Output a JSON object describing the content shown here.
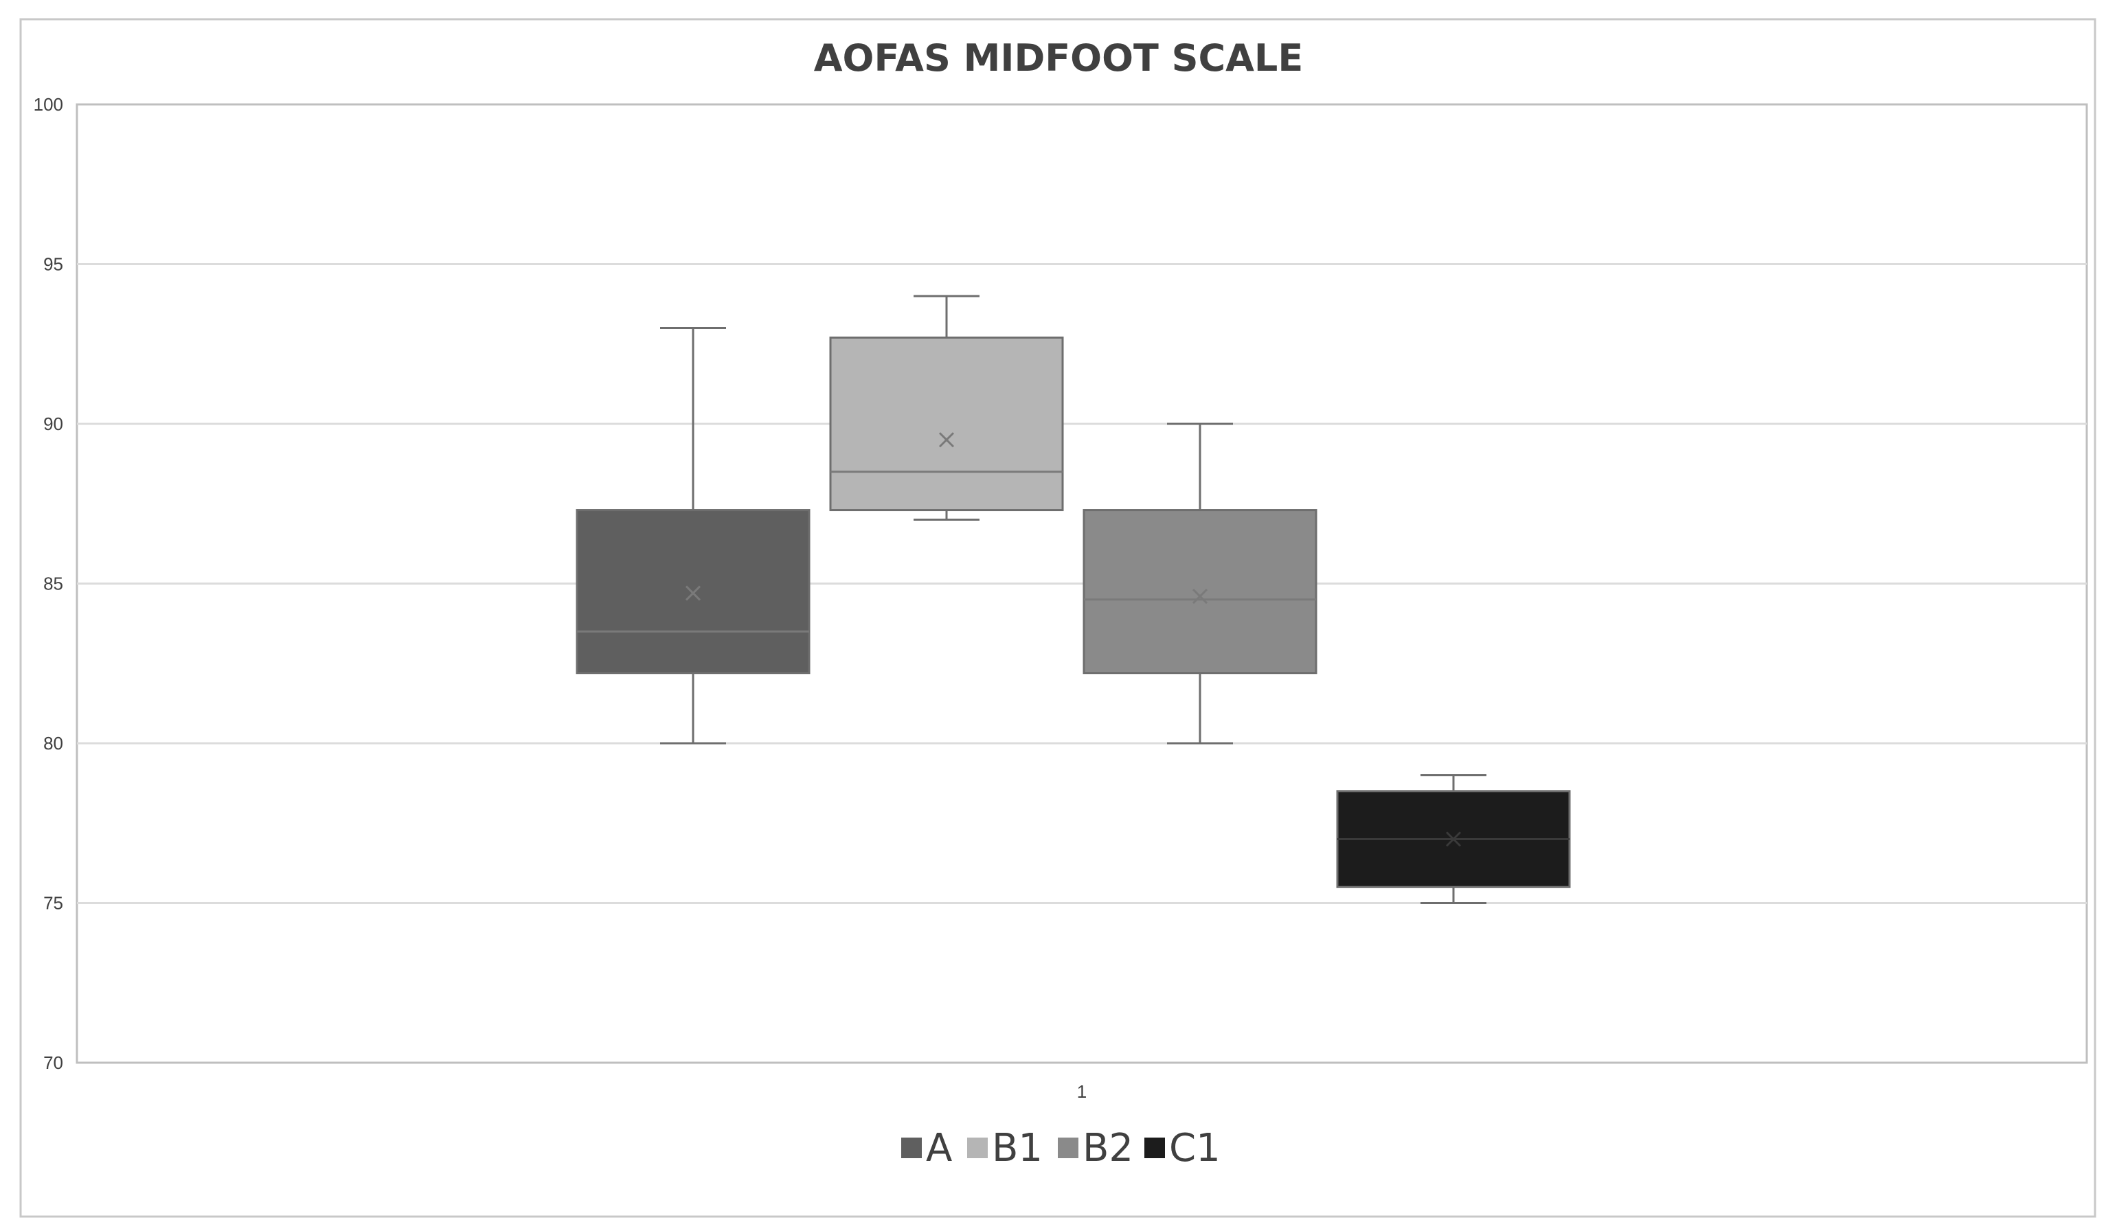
{
  "chart_data": {
    "type": "box",
    "title": "AOFAS MIDFOOT SCALE",
    "xlabel": "",
    "ylabel": "",
    "ylim": [
      70,
      100
    ],
    "yticks": [
      70,
      75,
      80,
      85,
      90,
      95,
      100
    ],
    "categories": [
      "1"
    ],
    "grid": true,
    "legend_position": "bottom",
    "series": [
      {
        "name": "A",
        "color": "#5f5f5f",
        "whisker_low": 80,
        "q1": 82.2,
        "median": 83.5,
        "q3": 87.3,
        "whisker_high": 93,
        "mean": 84.7
      },
      {
        "name": "B1",
        "color": "#b5b5b5",
        "whisker_low": 87,
        "q1": 87.3,
        "median": 88.5,
        "q3": 92.7,
        "whisker_high": 94,
        "mean": 89.5
      },
      {
        "name": "B2",
        "color": "#8a8a8a",
        "whisker_low": 80,
        "q1": 82.2,
        "median": 84.5,
        "q3": 87.3,
        "whisker_high": 90,
        "mean": 84.6
      },
      {
        "name": "C1",
        "color": "#1c1c1c",
        "whisker_low": 75,
        "q1": 75.5,
        "median": 77,
        "q3": 78.5,
        "whisker_high": 79,
        "mean": 77
      }
    ]
  }
}
